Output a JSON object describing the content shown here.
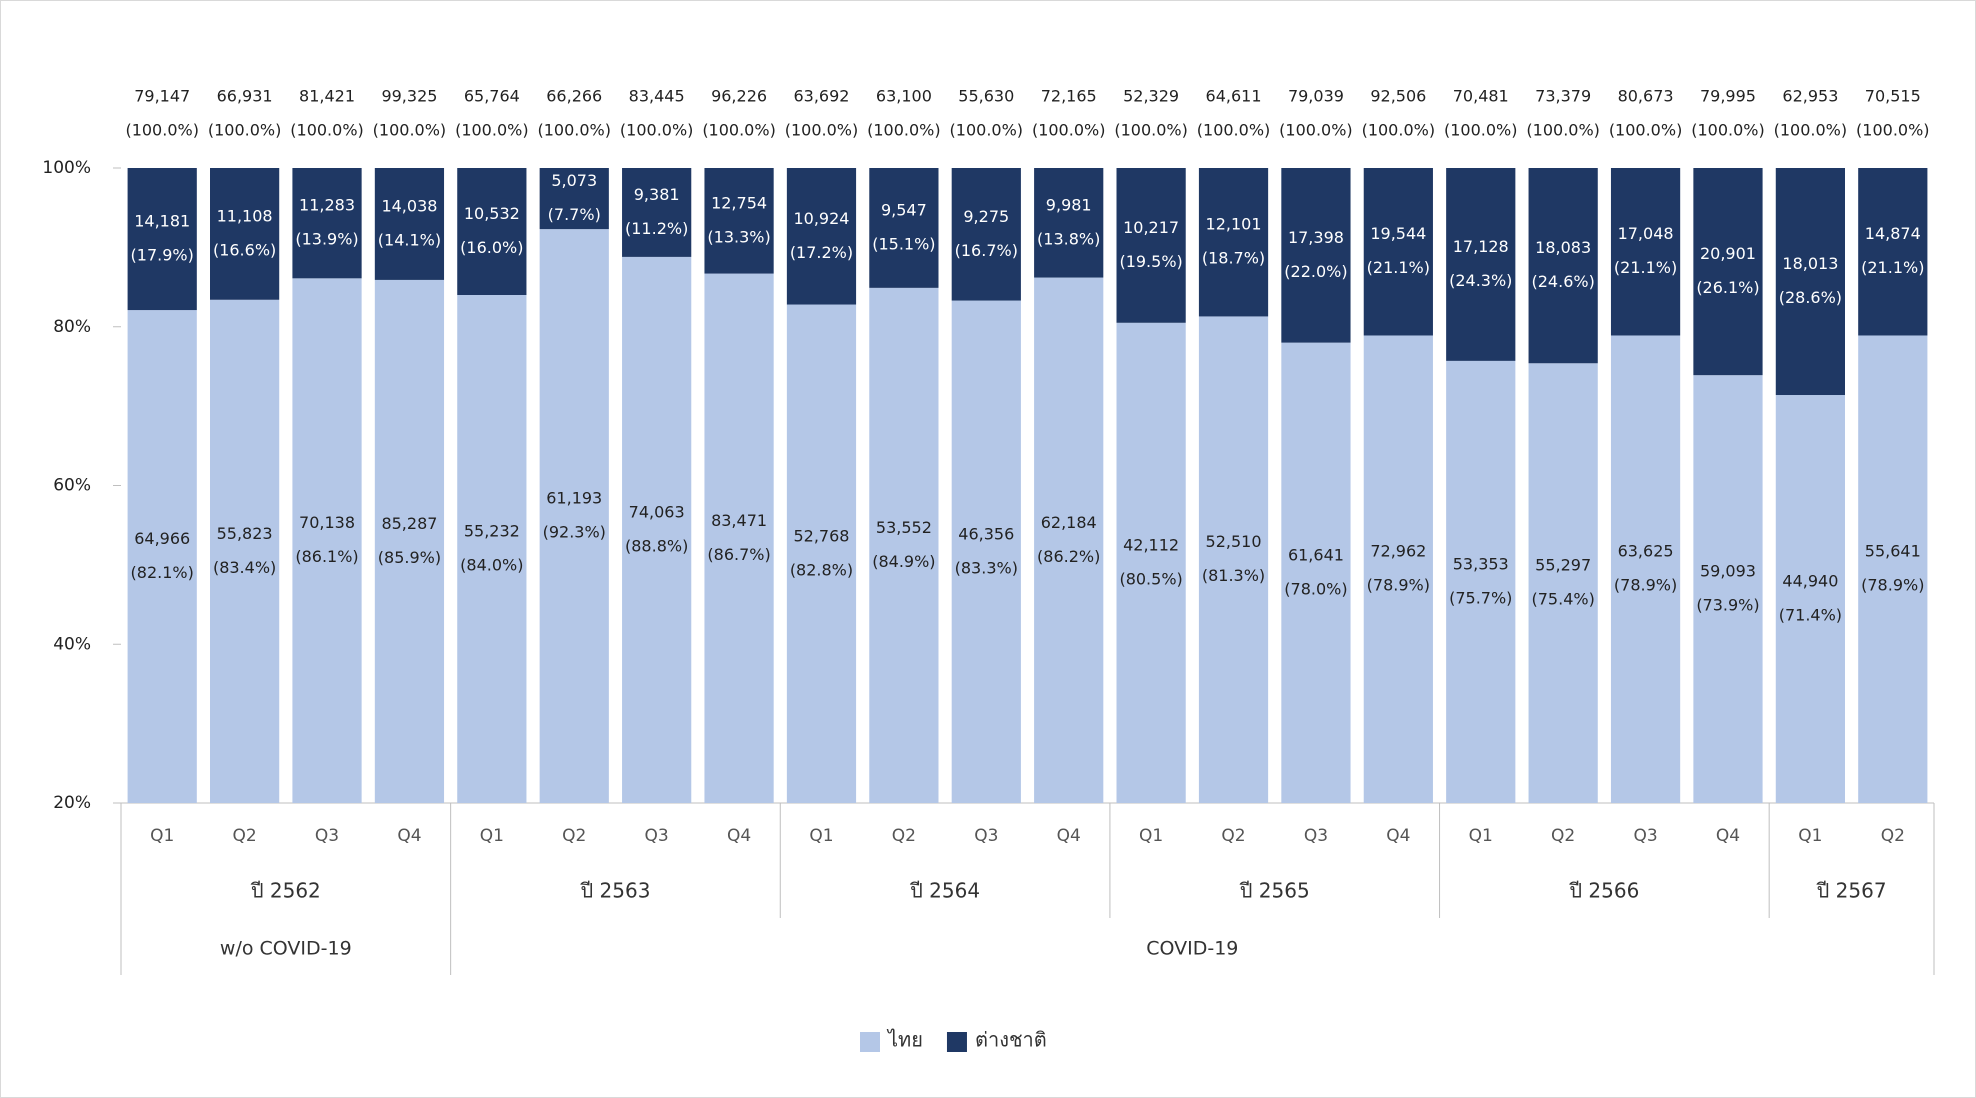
{
  "chart_data": {
    "type": "stacked_bar_100",
    "categories": [
      "Q1",
      "Q2",
      "Q3",
      "Q4",
      "Q1",
      "Q2",
      "Q3",
      "Q4",
      "Q1",
      "Q2",
      "Q3",
      "Q4",
      "Q1",
      "Q2",
      "Q3",
      "Q4",
      "Q1",
      "Q2",
      "Q3",
      "Q4",
      "Q1",
      "Q2"
    ],
    "year_groups": [
      {
        "label": "ปี 2562",
        "span": 4
      },
      {
        "label": "ปี 2563",
        "span": 4
      },
      {
        "label": "ปี 2564",
        "span": 4
      },
      {
        "label": "ปี 2565",
        "span": 4
      },
      {
        "label": "ปี 2566",
        "span": 4
      },
      {
        "label": "ปี 2567",
        "span": 2
      }
    ],
    "period_groups": [
      {
        "label": "w/o COVID-19",
        "span": 4
      },
      {
        "label": "COVID-19",
        "span": 18
      }
    ],
    "total_labels": [
      "79,147",
      "66,931",
      "81,421",
      "99,325",
      "65,764",
      "66,266",
      "83,445",
      "96,226",
      "63,692",
      "63,100",
      "55,630",
      "72,165",
      "52,329",
      "64,611",
      "79,039",
      "92,506",
      "70,481",
      "73,379",
      "80,673",
      "79,995",
      "62,953",
      "70,515"
    ],
    "total_percent_labels": [
      "(100.0%)",
      "(100.0%)",
      "(100.0%)",
      "(100.0%)",
      "(100.0%)",
      "(100.0%)",
      "(100.0%)",
      "(100.0%)",
      "(100.0%)",
      "(100.0%)",
      "(100.0%)",
      "(100.0%)",
      "(100.0%)",
      "(100.0%)",
      "(100.0%)",
      "(100.0%)",
      "(100.0%)",
      "(100.0%)",
      "(100.0%)",
      "(100.0%)",
      "(100.0%)",
      "(100.0%)"
    ],
    "series": [
      {
        "name": "ไทย",
        "color": "#b4c7e7",
        "label_color": "#222222",
        "values": [
          82.1,
          83.4,
          86.1,
          85.9,
          84.0,
          92.3,
          88.8,
          86.7,
          82.8,
          84.9,
          83.3,
          86.2,
          80.5,
          81.3,
          78.0,
          78.9,
          75.7,
          75.4,
          78.9,
          73.9,
          71.4,
          78.9
        ],
        "value_labels": [
          "(82.1%)",
          "(83.4%)",
          "(86.1%)",
          "(85.9%)",
          "(84.0%)",
          "(92.3%)",
          "(88.8%)",
          "(86.7%)",
          "(82.8%)",
          "(84.9%)",
          "(83.3%)",
          "(86.2%)",
          "(80.5%)",
          "(81.3%)",
          "(78.0%)",
          "(78.9%)",
          "(75.7%)",
          "(75.4%)",
          "(78.9%)",
          "(73.9%)",
          "(71.4%)",
          "(78.9%)"
        ],
        "count_labels": [
          "64,966",
          "55,823",
          "70,138",
          "85,287",
          "55,232",
          "61,193",
          "74,063",
          "83,471",
          "52,768",
          "53,552",
          "46,356",
          "62,184",
          "42,112",
          "52,510",
          "61,641",
          "72,962",
          "53,353",
          "55,297",
          "63,625",
          "59,093",
          "44,940",
          "55,641"
        ]
      },
      {
        "name": "ต่างชาติ",
        "color": "#1f3864",
        "label_color": "#ffffff",
        "values": [
          17.9,
          16.6,
          13.9,
          14.1,
          16.0,
          7.7,
          11.2,
          13.3,
          17.2,
          15.1,
          16.7,
          13.8,
          19.5,
          18.7,
          22.0,
          21.1,
          24.3,
          24.6,
          21.1,
          26.1,
          28.6,
          21.1
        ],
        "value_labels": [
          "(17.9%)",
          "(16.6%)",
          "(13.9%)",
          "(14.1%)",
          "(16.0%)",
          "(7.7%)",
          "(11.2%)",
          "(13.3%)",
          "(17.2%)",
          "(15.1%)",
          "(16.7%)",
          "(13.8%)",
          "(19.5%)",
          "(18.7%)",
          "(22.0%)",
          "(21.1%)",
          "(24.3%)",
          "(24.6%)",
          "(21.1%)",
          "(26.1%)",
          "(28.6%)",
          "(21.1%)"
        ],
        "count_labels": [
          "14,181",
          "11,108",
          "11,283",
          "14,038",
          "10,532",
          "5,073",
          "9,381",
          "12,754",
          "10,924",
          "9,547",
          "9,275",
          "9,981",
          "10,217",
          "12,101",
          "17,398",
          "19,544",
          "17,128",
          "18,083",
          "17,048",
          "20,901",
          "18,013",
          "14,874"
        ]
      }
    ],
    "ylim": [
      20,
      100
    ],
    "yticks": [
      {
        "value": 20,
        "label": "20%"
      },
      {
        "value": 40,
        "label": "40%"
      },
      {
        "value": 60,
        "label": "60%"
      },
      {
        "value": 80,
        "label": "80%"
      },
      {
        "value": 100,
        "label": "100%"
      }
    ],
    "legend": "bottom"
  }
}
